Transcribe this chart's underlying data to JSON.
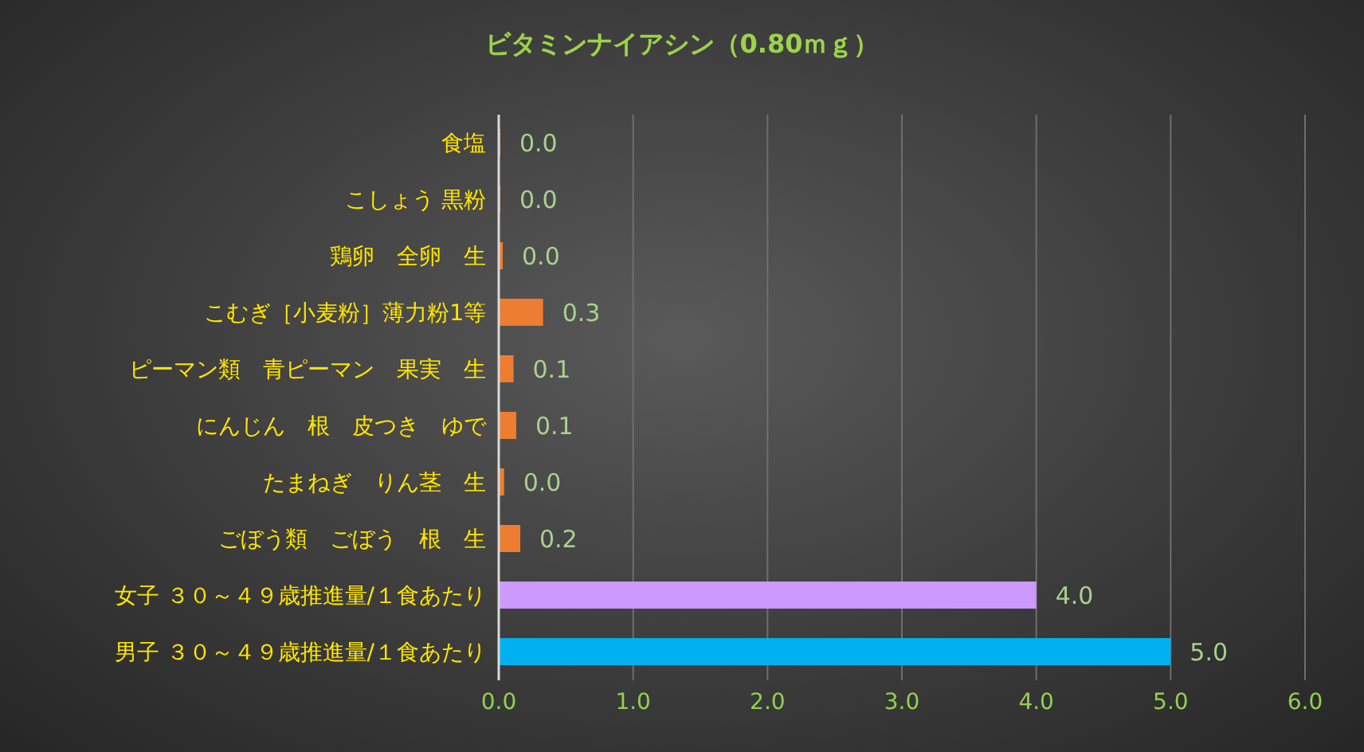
{
  "chart_data": {
    "type": "bar",
    "orientation": "horizontal",
    "title": "ビタミンナイアシン（0.80ｍｇ）",
    "categories": [
      "食塩",
      "こしょう 黒粉",
      "鶏卵　全卵　生",
      "こむぎ［小麦粉］薄力粉1等",
      "ピーマン類　青ピーマン　果実　生",
      "にんじん　根　皮つき　ゆで",
      "たまねぎ　りん茎　生",
      "ごぼう類　ごぼう　根　生",
      "女子 ３０～４９歳推進量/１食あたり",
      "男子 ３０～４９歳推進量/１食あたり"
    ],
    "values": [
      0,
      0,
      0.03,
      0.33,
      0.11,
      0.13,
      0.04,
      0.16,
      4.0,
      5.0
    ],
    "value_labels": [
      "0.0",
      "0.0",
      "0.0",
      "0.3",
      "0.1",
      "0.1",
      "0.0",
      "0.2",
      "4.0",
      "5.0"
    ],
    "colors": [
      "#ed7d31",
      "#ed7d31",
      "#ed7d31",
      "#ed7d31",
      "#ed7d31",
      "#ed7d31",
      "#ed7d31",
      "#ed7d31",
      "#cc99ff",
      "#00b0f0"
    ],
    "xlim": [
      0,
      6
    ],
    "xticks": [
      {
        "value": 0,
        "label": "0.0"
      },
      {
        "value": 1,
        "label": "1.0"
      },
      {
        "value": 2,
        "label": "2.0"
      },
      {
        "value": 3,
        "label": "3.0"
      },
      {
        "value": 4,
        "label": "4.0"
      },
      {
        "value": 5,
        "label": "5.0"
      },
      {
        "value": 6,
        "label": "6.0"
      }
    ],
    "grid": "x",
    "legend": false
  }
}
